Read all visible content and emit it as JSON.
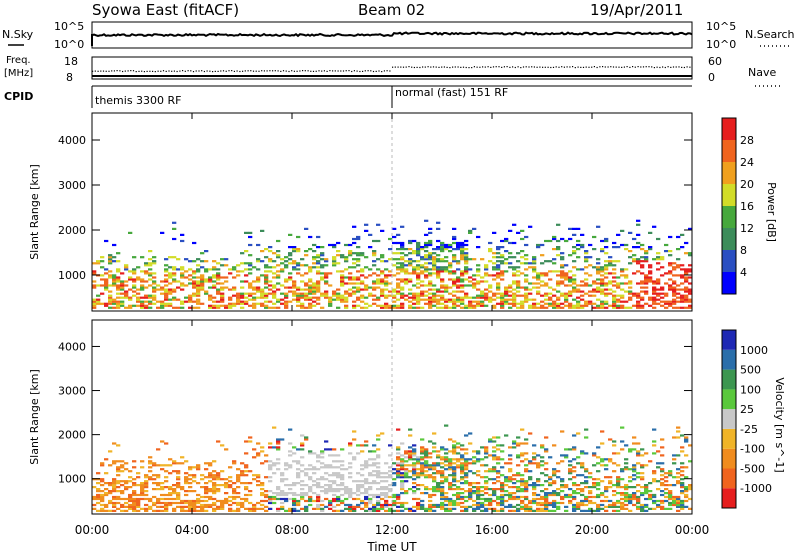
{
  "header": {
    "station": "Syowa East (fitACF)",
    "beam": "Beam 02",
    "date": "19/Apr/2011"
  },
  "noise_panel": {
    "left_label": "N.Sky",
    "right_label": "N.Search",
    "left_ticks": [
      "10^5",
      "10^0"
    ],
    "right_ticks": [
      "10^5",
      "10^0"
    ]
  },
  "freq_panel": {
    "left_label_line1": "Freq.",
    "left_label_line2": "[MHz]",
    "left_ticks": [
      "18",
      "8"
    ],
    "right_label": "Nave",
    "right_ticks": [
      "60",
      "0"
    ]
  },
  "cpid": {
    "label": "CPID",
    "modes": [
      {
        "name": "themis 3300 RF",
        "start_hour": 0
      },
      {
        "name": "normal (fast) 151 RF",
        "start_hour": 12
      }
    ]
  },
  "power_panel": {
    "ylabel": "Slant Range [km]",
    "yticks": [
      "1000",
      "2000",
      "3000",
      "4000"
    ],
    "colorbar_label": "Power [dB]",
    "colorbar_ticks": [
      "4",
      "8",
      "12",
      "16",
      "20",
      "24",
      "28"
    ],
    "colors": [
      "#0000ff",
      "#2a4fc2",
      "#3c8c5a",
      "#46a83c",
      "#d2dc28",
      "#f0a01e",
      "#f0641e",
      "#e61e1e"
    ]
  },
  "velocity_panel": {
    "ylabel": "Slant Range [km]",
    "yticks": [
      "1000",
      "2000",
      "3000",
      "4000"
    ],
    "colorbar_label": "Velocity [m s^-1]",
    "colorbar_ticks": [
      "1000",
      "500",
      "100",
      "25",
      "-25",
      "-100",
      "-500",
      "-1000"
    ],
    "colors": [
      "#1e28b4",
      "#2a6eaa",
      "#3c9650",
      "#5ac83c",
      "#c8c8c8",
      "#f0b428",
      "#f08c1e",
      "#f0641e",
      "#e61e1e"
    ]
  },
  "xaxis": {
    "ticks": [
      "00:00",
      "04:00",
      "08:00",
      "12:00",
      "16:00",
      "20:00",
      "00:00"
    ],
    "label": "Time UT"
  },
  "chart_data": [
    {
      "type": "line",
      "name": "noise",
      "x_range_hours": [
        0,
        24
      ],
      "description_series": [
        "N.Sky",
        "N.Search"
      ]
    },
    {
      "type": "scatter",
      "name": "frequency / nave",
      "x_range_hours": [
        0,
        24
      ],
      "ylim_left_mhz": [
        8,
        18
      ],
      "ylim_right_nave": [
        0,
        60
      ]
    },
    {
      "type": "heatmap",
      "name": "power",
      "x_range_hours": [
        0,
        24
      ],
      "ylim_km": [
        200,
        4600
      ],
      "clim_db": [
        0,
        32
      ]
    },
    {
      "type": "heatmap",
      "name": "velocity",
      "x_range_hours": [
        0,
        24
      ],
      "ylim_km": [
        200,
        4600
      ],
      "clim_ms": [
        -1000,
        1000
      ]
    }
  ]
}
